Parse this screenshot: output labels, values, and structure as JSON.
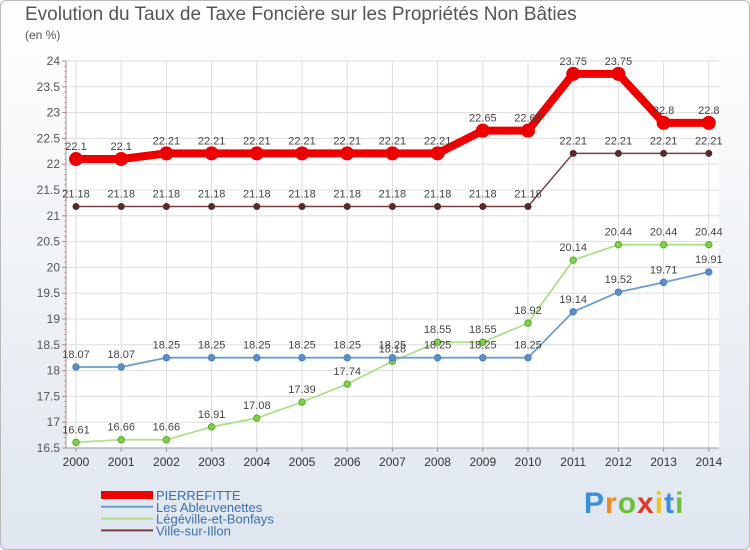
{
  "chart_data": {
    "type": "line",
    "title": "Evolution du Taux de Taxe Foncière sur les Propriétés Non Bâties",
    "unit_label": "(en %)",
    "x": [
      "2000",
      "2001",
      "2002",
      "2003",
      "2004",
      "2005",
      "2006",
      "2007",
      "2008",
      "2009",
      "2010",
      "2011",
      "2012",
      "2013",
      "2014"
    ],
    "ylim": [
      16.5,
      24
    ],
    "yticks": [
      "16.5",
      "17",
      "17.5",
      "18",
      "18.5",
      "19",
      "19.5",
      "20",
      "20.5",
      "21",
      "21.5",
      "22",
      "22.5",
      "23",
      "23.5",
      "24"
    ],
    "series": [
      {
        "name": "PIERREFITTE",
        "color": "#ee0000",
        "values": [
          22.1,
          22.1,
          22.21,
          22.21,
          22.21,
          22.21,
          22.21,
          22.21,
          22.21,
          22.65,
          22.65,
          23.75,
          23.75,
          22.8,
          22.8
        ],
        "labels": [
          "22.1",
          "22.1",
          "22.21",
          "22.21",
          "22.21",
          "22.21",
          "22.21",
          "22.21",
          "22.21",
          "22.65",
          "22.65",
          "23.75",
          "23.75",
          "22.8",
          "22.8"
        ]
      },
      {
        "name": "Les Ableuvenettes",
        "color": "#6a9ed0",
        "values": [
          18.07,
          18.07,
          18.25,
          18.25,
          18.25,
          18.25,
          18.25,
          18.25,
          18.25,
          18.25,
          18.25,
          19.14,
          19.52,
          19.71,
          19.91
        ],
        "labels": [
          "18.07",
          "18.07",
          "18.25",
          "18.25",
          "18.25",
          "18.25",
          "18.25",
          "18.25",
          "18.25",
          "18.25",
          "18.25",
          "19.14",
          "19.52",
          "19.71",
          "19.91"
        ]
      },
      {
        "name": "Légéville-et-Bonfays",
        "color": "#8fd35a",
        "values": [
          16.61,
          16.66,
          16.66,
          16.91,
          17.08,
          17.39,
          17.74,
          18.18,
          18.55,
          18.55,
          18.92,
          20.14,
          20.44,
          20.44,
          20.44
        ],
        "labels": [
          "16.61",
          "16.66",
          "16.66",
          "16.91",
          "17.08",
          "17.39",
          "17.74",
          "18.18",
          "18.55",
          "18.55",
          "18.92",
          "20.14",
          "20.44",
          "20.44",
          "20.44"
        ]
      },
      {
        "name": "Ville-sur-Illon",
        "color": "#7a3f3f",
        "values": [
          21.18,
          21.18,
          21.18,
          21.18,
          21.18,
          21.18,
          21.18,
          21.18,
          21.18,
          21.18,
          21.18,
          22.21,
          22.21,
          22.21,
          22.21
        ],
        "labels": [
          "21.18",
          "21.18",
          "21.18",
          "21.18",
          "21.18",
          "21.18",
          "21.18",
          "21.18",
          "21.18",
          "21.18",
          "21.18",
          "22.21",
          "22.21",
          "22.21",
          "22.21"
        ]
      }
    ],
    "legend_position": "bottom-left"
  },
  "brand": {
    "letters": [
      "P",
      "r",
      "o",
      "x",
      "i",
      "t",
      "i"
    ],
    "colors": [
      "#3a8fd8",
      "#e8892a",
      "#6bbf3a",
      "#e03a2a",
      "#f0c020",
      "#3a8fd8",
      "#6bbf3a"
    ]
  }
}
